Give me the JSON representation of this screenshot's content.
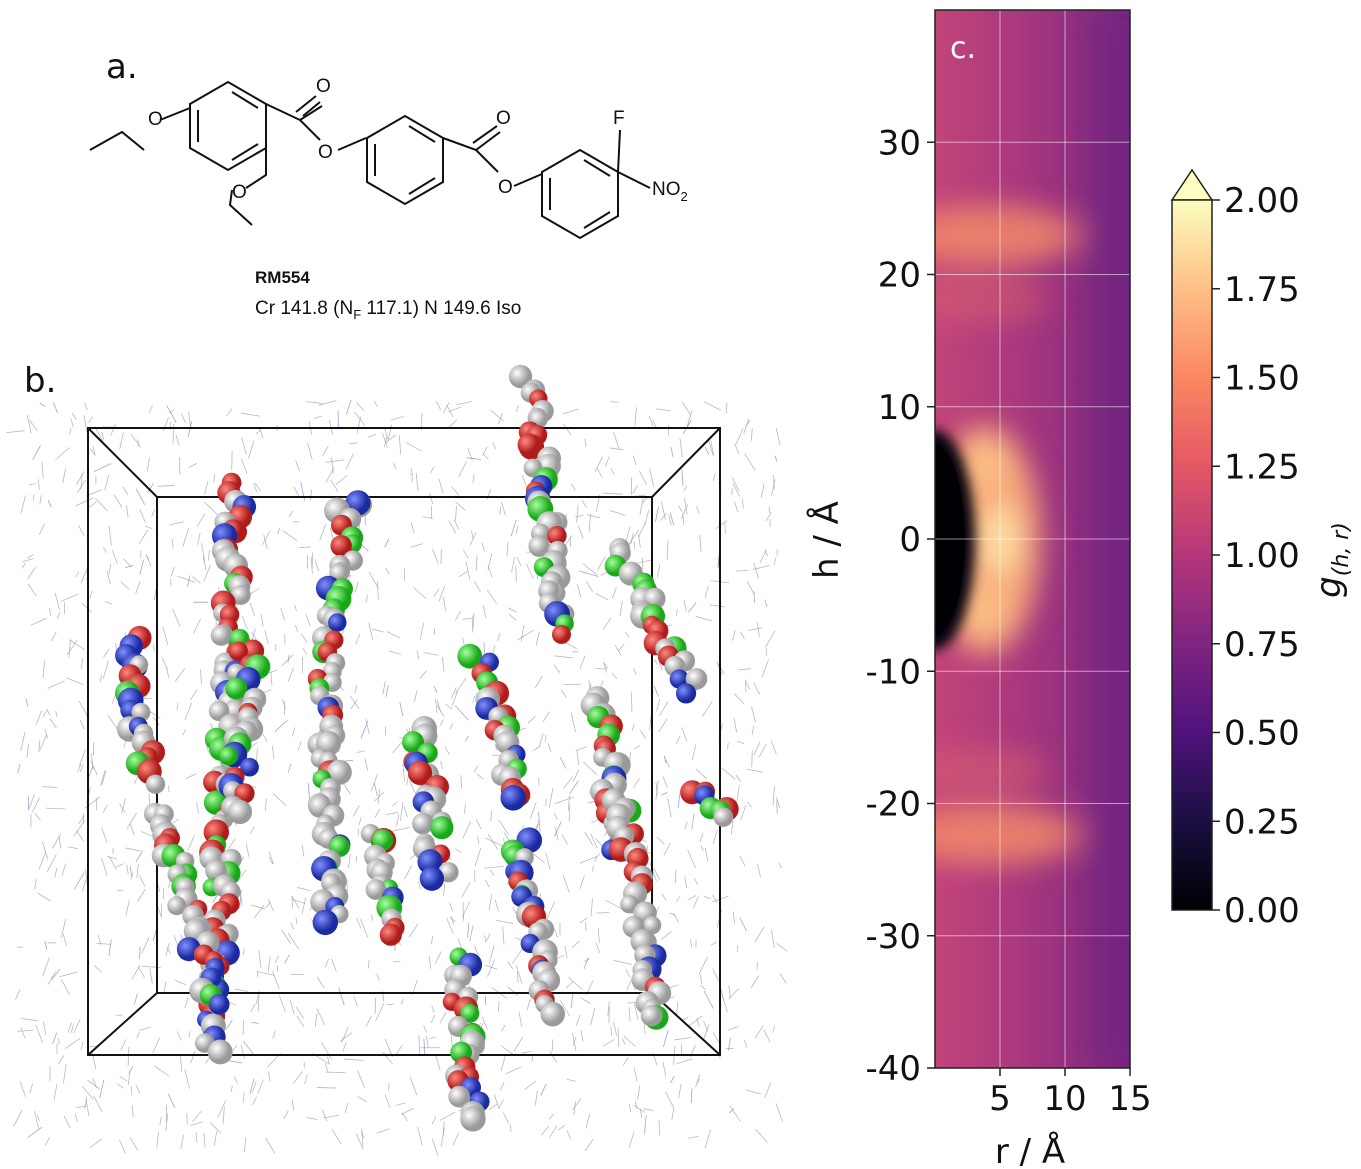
{
  "panel_a": {
    "label": "a.",
    "atoms": [
      "O",
      "O",
      "O",
      "O",
      "O",
      "O",
      "F",
      "NO",
      "2"
    ],
    "compound": "RM554",
    "transitions": [
      "Cr 141.8 (N",
      "F",
      " 117.1) N 149.6 Iso"
    ]
  },
  "panel_b": {
    "label": "b."
  },
  "chart_data": {
    "type": "heatmap",
    "panel_label": "c.",
    "x_label": "r / Å",
    "y_label": "h / Å",
    "xlim": [
      0,
      15
    ],
    "xticks": [
      5,
      10,
      15
    ],
    "ylim": [
      -40,
      40
    ],
    "yticks": [
      -40,
      -30,
      -20,
      -10,
      0,
      10,
      20,
      30
    ],
    "grid": true,
    "colorbar": {
      "label": "g",
      "label_sub": "(h, r)",
      "lim": [
        0,
        2
      ],
      "extend": "max",
      "ticks": [
        {
          "value": 0,
          "label": "0.00"
        },
        {
          "value": 0.25,
          "label": "0.25"
        },
        {
          "value": 0.5,
          "label": "0.50"
        },
        {
          "value": 0.75,
          "label": "0.75"
        },
        {
          "value": 1,
          "label": "1.00"
        },
        {
          "value": 1.25,
          "label": "1.25"
        },
        {
          "value": 1.5,
          "label": "1.50"
        },
        {
          "value": 1.75,
          "label": "1.75"
        },
        {
          "value": 2,
          "label": "2.00"
        }
      ]
    }
  }
}
